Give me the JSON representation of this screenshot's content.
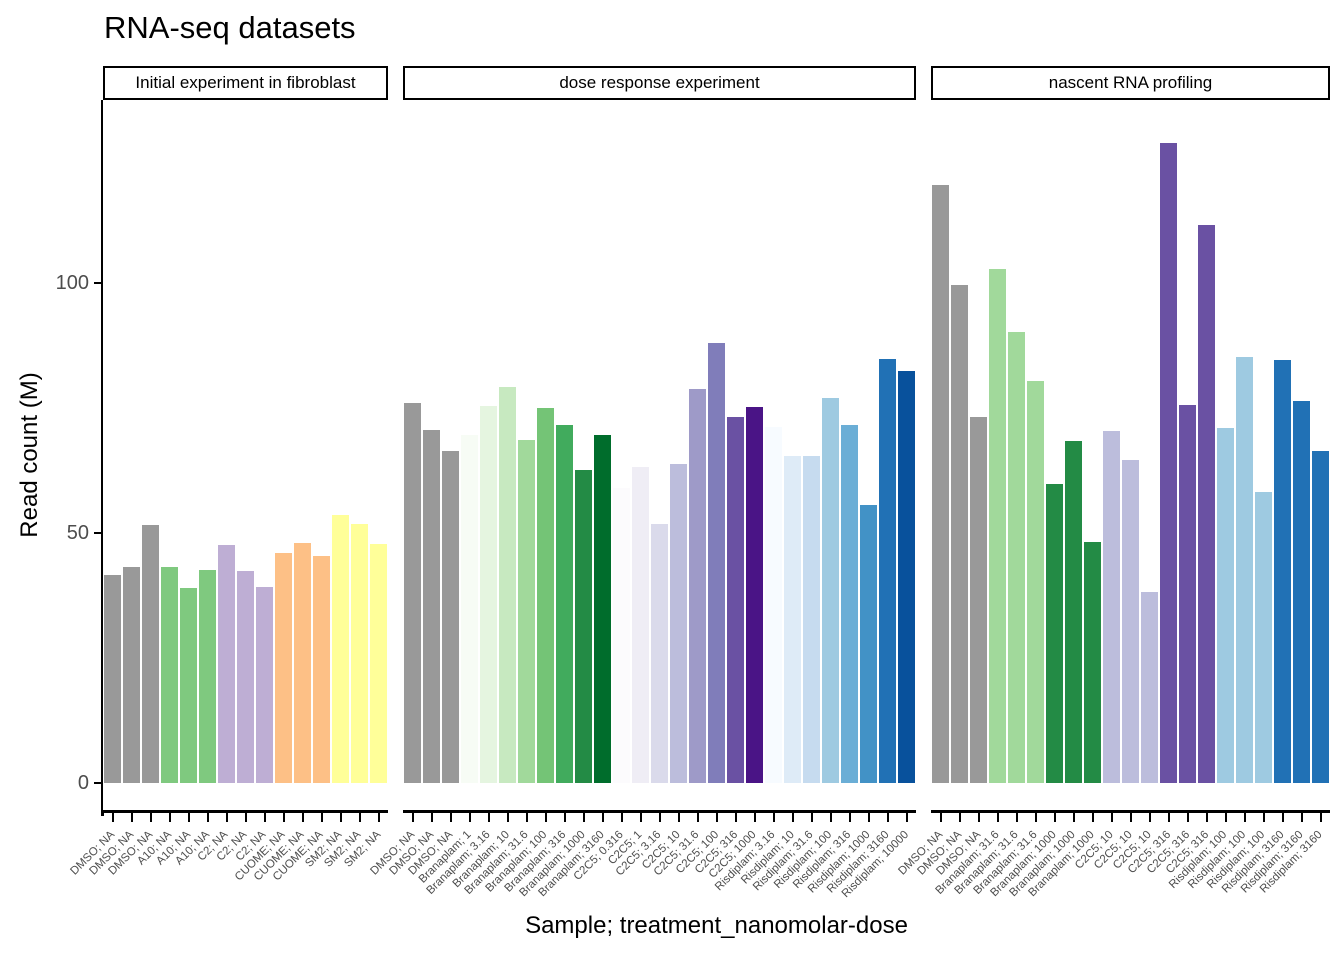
{
  "chart_data": {
    "type": "bar",
    "title": "RNA-seq datasets",
    "xlabel": "Sample; treatment_nanomolar-dose",
    "ylabel": "Read count (M)",
    "ylim": [
      0,
      136
    ],
    "yticks": [
      0,
      50,
      100
    ],
    "grid": false,
    "legend": "none",
    "facets": [
      {
        "label": "Initial experiment in fibroblast",
        "categories": [
          "DMSO; NA",
          "DMSO; NA",
          "DMSO; NA",
          "A10; NA",
          "A10; NA",
          "A10; NA",
          "C2; NA",
          "C2; NA",
          "C2; NA",
          "CUOME; NA",
          "CUOME; NA",
          "CUOME; NA",
          "SM2; NA",
          "SM2; NA",
          "SM2; NA"
        ],
        "values": [
          41.6,
          43.2,
          51.6,
          43.2,
          39.0,
          42.6,
          47.6,
          42.4,
          39.2,
          46.0,
          48.0,
          45.4,
          53.6,
          51.8,
          47.8
        ],
        "colors": [
          "#999999",
          "#999999",
          "#999999",
          "#7FC97F",
          "#7FC97F",
          "#7FC97F",
          "#BEAED4",
          "#BEAED4",
          "#BEAED4",
          "#FDC086",
          "#FDC086",
          "#FDC086",
          "#FFFF99",
          "#FFFF99",
          "#FFFF99"
        ]
      },
      {
        "label": "dose response experiment",
        "categories": [
          "DMSO; NA",
          "DMSO; NA",
          "DMSO; NA",
          "Branaplam; 1",
          "Branaplam; 3.16",
          "Branaplam; 10",
          "Branaplam; 31.6",
          "Branaplam; 100",
          "Branaplam; 316",
          "Branaplam; 1000",
          "Branaplam; 3160",
          "C2C5; 0.316",
          "C2C5; 1",
          "C2C5; 3.16",
          "C2C5; 10",
          "C2C5; 31.6",
          "C2C5; 100",
          "C2C5; 316",
          "C2C5; 1000",
          "Risdiplam; 3.16",
          "Risdiplam; 10",
          "Risdiplam; 31.6",
          "Risdiplam; 100",
          "Risdiplam; 316",
          "Risdiplam; 1000",
          "Risdiplam; 3160",
          "Risdiplam; 10000"
        ],
        "values": [
          76.1,
          70.7,
          66.5,
          69.6,
          75.4,
          79.2,
          68.7,
          75.0,
          71.6,
          62.7,
          69.7,
          59.0,
          63.3,
          51.9,
          63.9,
          78.9,
          88.0,
          73.3,
          75.2,
          71.3,
          65.4,
          65.5,
          77.1,
          71.7,
          55.7,
          84.9,
          82.5
        ],
        "colors": [
          "#999999",
          "#999999",
          "#999999",
          "#F7FCF5",
          "#E5F5E0",
          "#C7E9C0",
          "#A1D99B",
          "#74C476",
          "#41AB5D",
          "#238B45",
          "#006D2C",
          "#FCFBFD",
          "#EFEDF5",
          "#DADAEB",
          "#BCBDDC",
          "#9E9AC8",
          "#807DBA",
          "#6A51A3",
          "#4A1486",
          "#F7FBFF",
          "#DEEBF7",
          "#C6DBEF",
          "#9ECAE1",
          "#6BAED6",
          "#4292C6",
          "#2171B5",
          "#08519C"
        ]
      },
      {
        "label": "nascent RNA profiling",
        "categories": [
          "DMSO; NA",
          "DMSO; NA",
          "DMSO; NA",
          "Branaplam; 31.6",
          "Branaplam; 31.6",
          "Branaplam; 31.6",
          "Branaplam; 1000",
          "Branaplam; 1000",
          "Branaplam; 1000",
          "C2C5; 10",
          "C2C5; 10",
          "C2C5; 10",
          "C2C5; 316",
          "C2C5; 316",
          "C2C5; 316",
          "Risdiplam; 100",
          "Risdiplam; 100",
          "Risdiplam; 100",
          "Risdiplam; 3160",
          "Risdiplam; 3160",
          "Risdiplam; 3160"
        ],
        "values": [
          119.7,
          99.7,
          73.3,
          102.9,
          90.2,
          80.5,
          59.9,
          68.5,
          48.2,
          70.5,
          64.7,
          38.3,
          128.1,
          75.7,
          111.7,
          71.0,
          85.2,
          58.2,
          84.7,
          76.4,
          66.5
        ],
        "colors": [
          "#999999",
          "#999999",
          "#999999",
          "#A1D99B",
          "#A1D99B",
          "#A1D99B",
          "#238B45",
          "#238B45",
          "#238B45",
          "#BCBDDC",
          "#BCBDDC",
          "#BCBDDC",
          "#6A51A3",
          "#6A51A3",
          "#6A51A3",
          "#9ECAE1",
          "#9ECAE1",
          "#9ECAE1",
          "#2171B5",
          "#2171B5",
          "#2171B5"
        ]
      }
    ]
  }
}
